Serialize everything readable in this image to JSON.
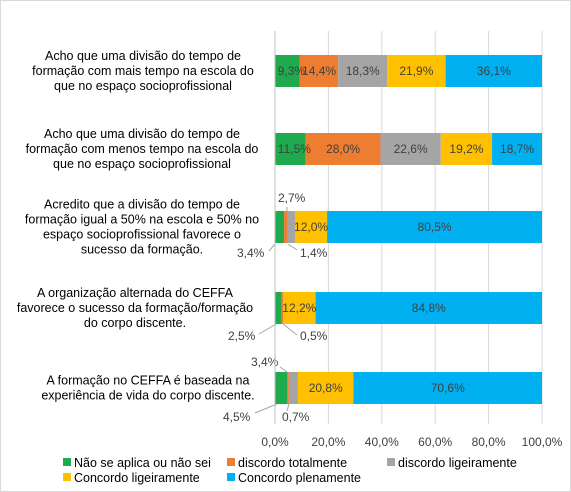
{
  "chart_data": {
    "type": "bar",
    "orientation": "horizontal",
    "stacked": true,
    "title": "",
    "xlabel": "",
    "ylabel": "",
    "xlim": [
      0,
      100
    ],
    "x_ticks": [
      "0,0%",
      "20,0%",
      "40,0%",
      "60,0%",
      "80,0%",
      "100,0%"
    ],
    "grid": true,
    "legend_position": "bottom",
    "categories": [
      [
        "Acho que uma divisão do tempo de",
        "formação com mais tempo na escola do",
        "que no espaço socioprofissional"
      ],
      [
        "Acho que uma divisão do tempo de",
        "formação com menos tempo na escola do",
        "que no espaço socioprofissional"
      ],
      [
        "Acredito que a divisão do tempo de",
        "formação igual a 50% na escola e 50% no",
        "espaço socioprofissional favorece o",
        "sucesso da formação."
      ],
      [
        "A organização alternada do CEFFA",
        "favorece o sucesso da formação/formação",
        "do corpo discente."
      ],
      [
        "A formação no CEFFA é baseada na",
        "experiência de vida do corpo discente."
      ]
    ],
    "series": [
      {
        "name": "Não se aplica ou não sei",
        "color": "#1faa4e",
        "values": [
          9.3,
          11.5,
          3.4,
          2.5,
          4.5
        ],
        "labels": [
          "9,3%",
          "11,5%",
          "3,4%",
          "2,5%",
          "4,5%"
        ]
      },
      {
        "name": "discordo totalmente",
        "color": "#ed7d31",
        "values": [
          14.4,
          28.0,
          1.4,
          0.5,
          0.7
        ],
        "labels": [
          "14,4%",
          "28,0%",
          "1,4%",
          "0,5%",
          "0,7%"
        ]
      },
      {
        "name": "discordo ligeiramente",
        "color": "#a5a5a5",
        "values": [
          18.3,
          22.6,
          2.7,
          0.0,
          3.4
        ],
        "labels": [
          "18,3%",
          "22,6%",
          "2,7%",
          "",
          "3,4%"
        ]
      },
      {
        "name": "Concordo ligeiramente",
        "color": "#ffc000",
        "values": [
          21.9,
          19.2,
          12.0,
          12.2,
          20.8
        ],
        "labels": [
          "21,9%",
          "19,2%",
          "12,0%",
          "12,2%",
          "20,8%"
        ]
      },
      {
        "name": "Concordo plenamente",
        "color": "#00b0f0",
        "values": [
          36.1,
          18.7,
          80.5,
          84.8,
          70.6
        ],
        "labels": [
          "36,1%",
          "18,7%",
          "80,5%",
          "84,8%",
          "70,6%"
        ]
      }
    ]
  }
}
